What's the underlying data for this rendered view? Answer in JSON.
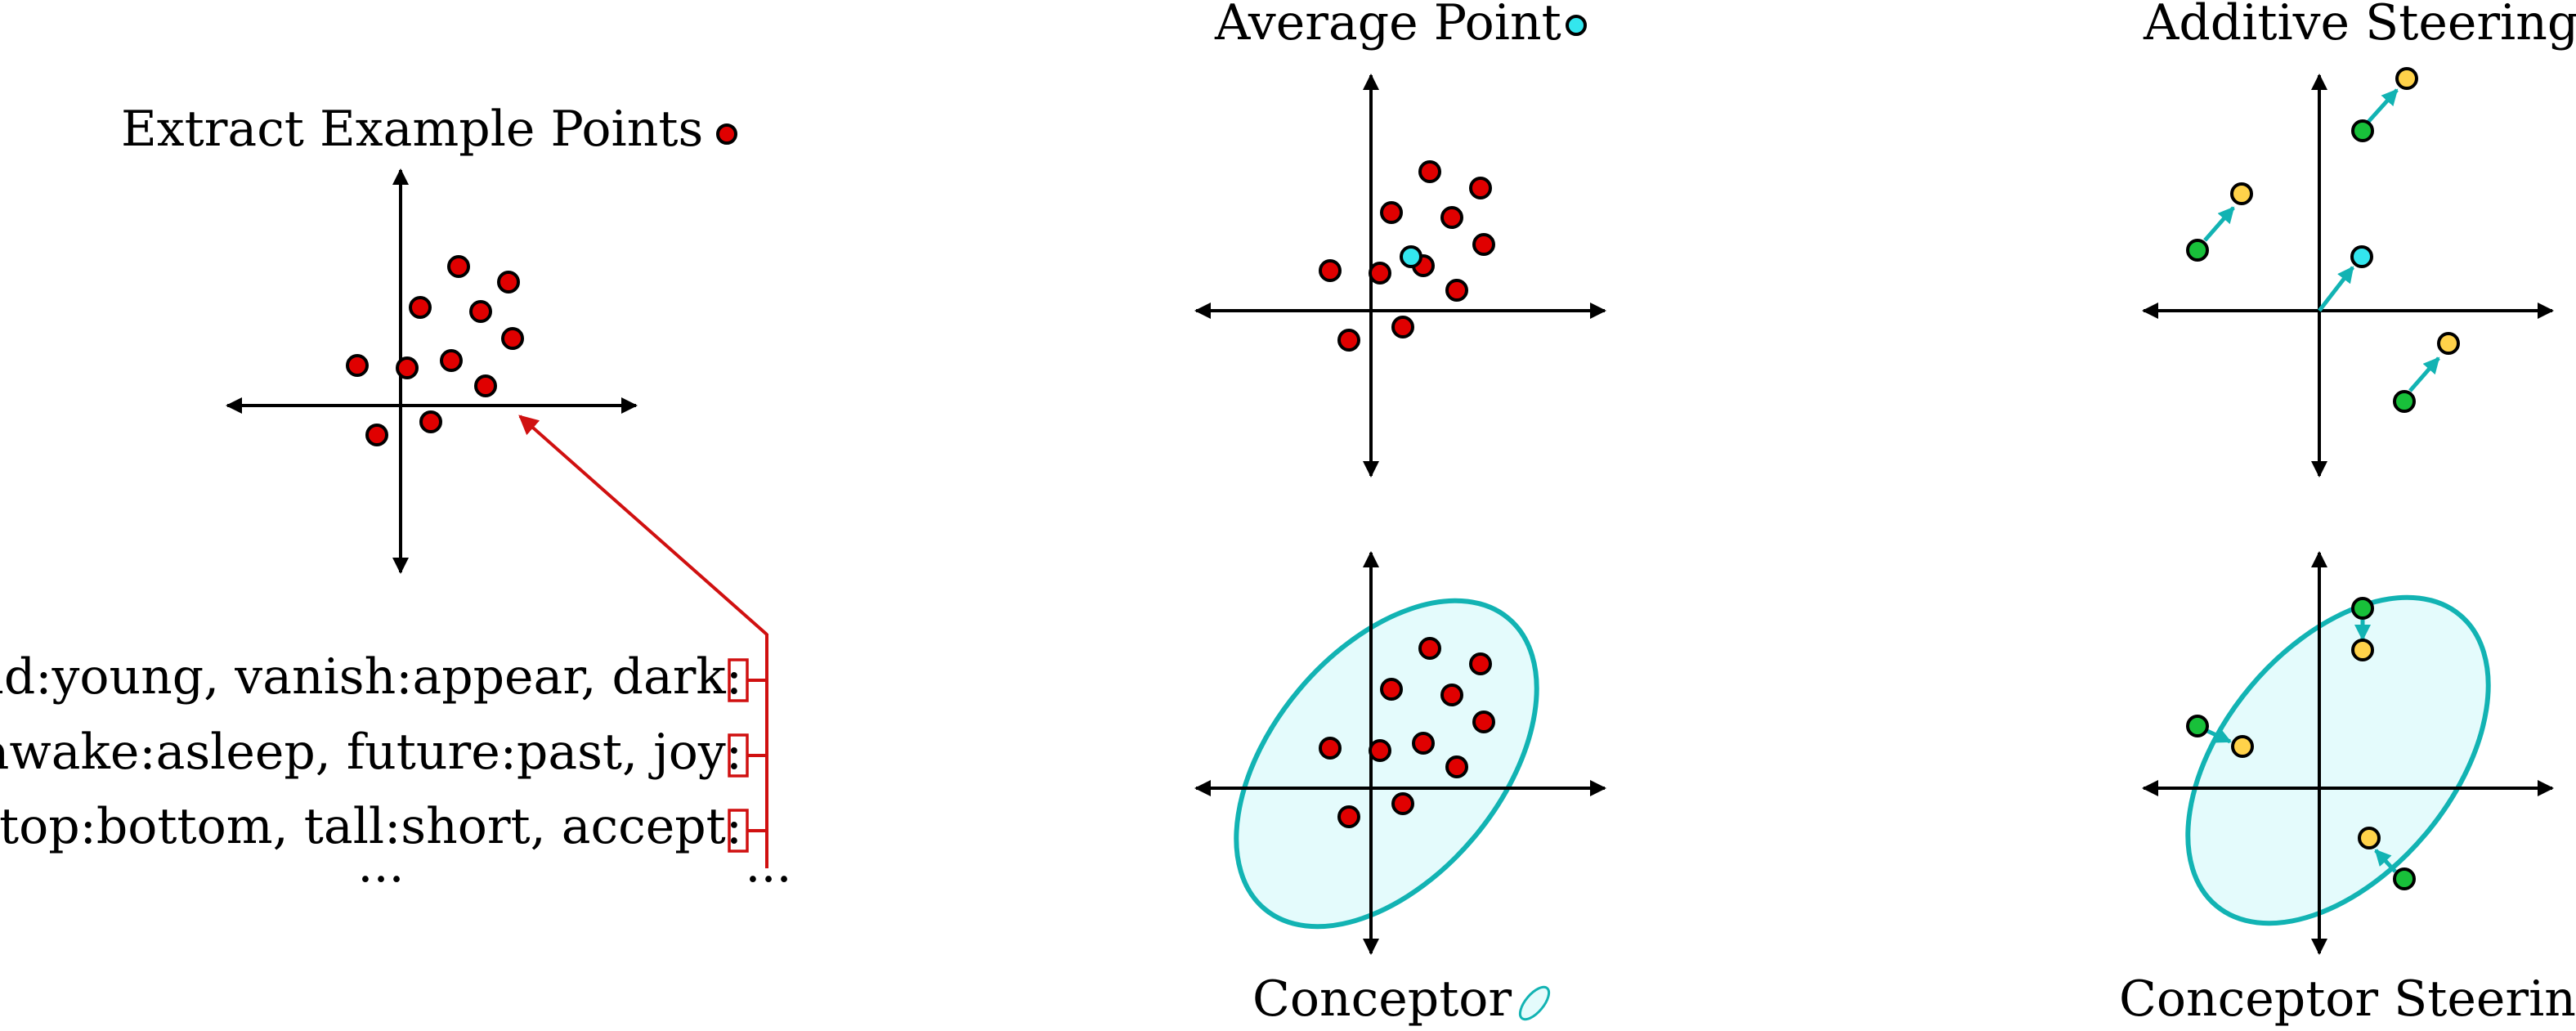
{
  "panels": {
    "extract": {
      "title": "Extract Example Points"
    },
    "average": {
      "title": "Average Point"
    },
    "additive": {
      "title": "Additive Steering"
    },
    "conceptor": {
      "title": "Conceptor"
    },
    "conceptor_steering": {
      "title": "Conceptor Steering"
    }
  },
  "prompts": {
    "lines": [
      "old:young, vanish:appear, dark:",
      "awake:asleep, future:past, joy:",
      "top:bottom, tall:short, accept:"
    ],
    "ellipsis_left": "...",
    "ellipsis_right": "..."
  },
  "colors": {
    "point_red": "#e00000",
    "average_cyan": "#33e6ee",
    "steer_green": "#18c03a",
    "steer_yellow": "#ffd24a",
    "teal": "#12b3b3",
    "ellipse_fill": "#e4fbfc",
    "highlight_red": "#d01010"
  },
  "icons": {
    "title_marker_extract": "red-point-icon",
    "title_marker_average": "cyan-point-icon",
    "title_marker_conceptor": "ellipse-icon"
  }
}
